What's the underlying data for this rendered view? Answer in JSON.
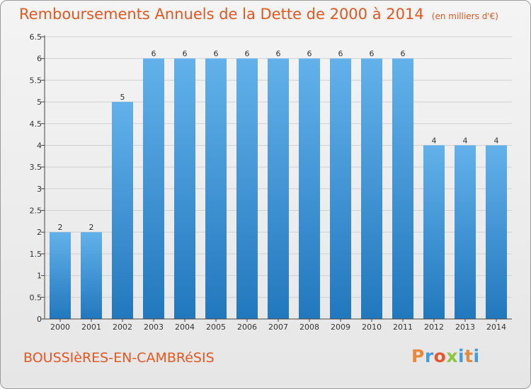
{
  "page": {
    "title": "Remboursements Annuels de la Dette de 2000 à 2014",
    "subtitle": "(en milliers d'€)",
    "town": "BOUSSIèRES-EN-CAMBRéSIS",
    "logo": "Proxiti"
  },
  "colors": {
    "title": "#e4571f",
    "bar_light": "#62b1ea",
    "bar_dark": "#2278bd",
    "grid": "#d0d0d0",
    "axis": "#444444",
    "logo_letters": [
      "#e8883a",
      "#3f9de0",
      "#e4572e",
      "#8cc63f",
      "#3f9de0",
      "#e8883a",
      "#3f9de0"
    ]
  },
  "chart_data": {
    "type": "bar",
    "title": "Remboursements Annuels de la Dette de 2000 à 2014",
    "subtitle": "(en milliers d'€)",
    "xlabel": "",
    "ylabel": "",
    "categories": [
      "2000",
      "2001",
      "2002",
      "2003",
      "2004",
      "2005",
      "2006",
      "2007",
      "2008",
      "2009",
      "2010",
      "2011",
      "2012",
      "2013",
      "2014"
    ],
    "values": [
      2,
      2,
      5,
      6,
      6,
      6,
      6,
      6,
      6,
      6,
      6,
      6,
      4,
      4,
      4
    ],
    "value_labels": [
      "2",
      "2",
      "5",
      "6",
      "6",
      "6",
      "6",
      "6",
      "6",
      "6",
      "6",
      "6",
      "4",
      "4",
      "4"
    ],
    "ylim": [
      0,
      6.5
    ],
    "yticks": [
      0,
      0.5,
      1,
      1.5,
      2,
      2.5,
      3,
      3.5,
      4,
      4.5,
      5,
      5.5,
      6,
      6.5
    ],
    "ytick_labels": [
      "0",
      "0.5",
      "1",
      "1.5",
      "2",
      "2.5",
      "3",
      "3.5",
      "4",
      "4.5",
      "5",
      "5.5",
      "6",
      "6.5"
    ],
    "grid": true,
    "legend": "none"
  }
}
